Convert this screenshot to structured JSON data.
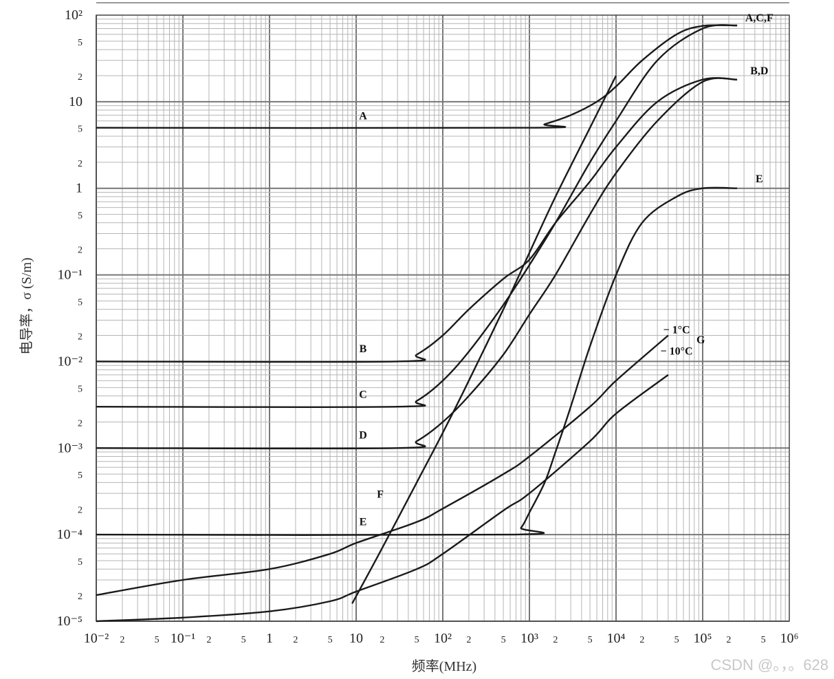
{
  "watermark": "CSDN @。，。628",
  "chart_data": {
    "type": "line",
    "xlabel": "频率(MHz)",
    "ylabel": "电导率，σ (S/m)",
    "xscale": "log",
    "yscale": "log",
    "xlim": [
      0.01,
      1000000
    ],
    "ylim": [
      1e-05,
      100
    ],
    "grid": true,
    "x_tick_labels": [
      "10⁻²",
      "2",
      "5",
      "10⁻¹",
      "2",
      "5",
      "1",
      "2",
      "5",
      "10",
      "2",
      "5",
      "10²",
      "2",
      "5",
      "10³",
      "2",
      "5",
      "10⁴",
      "2",
      "5",
      "10⁵",
      "2",
      "5",
      "10⁶"
    ],
    "y_tick_labels": [
      "10⁻⁵",
      "2",
      "5",
      "10⁻⁴",
      "2",
      "5",
      "10⁻³",
      "2",
      "5",
      "10⁻²",
      "2",
      "5",
      "10⁻¹",
      "2",
      "5",
      "1",
      "2",
      "5",
      "10",
      "2",
      "5",
      "10²"
    ],
    "series": [
      {
        "name": "A",
        "color": "#1a1a1a",
        "x": [
          0.01,
          1000,
          1500,
          3000,
          6000,
          10000,
          20000,
          50000,
          100000,
          250000
        ],
        "y": [
          5,
          5,
          5.5,
          7,
          10,
          15,
          30,
          60,
          75,
          76
        ]
      },
      {
        "name": "B",
        "color": "#1a1a1a",
        "x": [
          0.01,
          30,
          50,
          100,
          200,
          500,
          1000,
          2000,
          5000,
          10000,
          30000,
          100000,
          250000
        ],
        "y": [
          0.01,
          0.01,
          0.012,
          0.02,
          0.04,
          0.09,
          0.15,
          0.4,
          1.2,
          3,
          10,
          18,
          18
        ]
      },
      {
        "name": "C",
        "color": "#1a1a1a",
        "x": [
          0.01,
          30,
          50,
          100,
          200,
          500,
          1000,
          2000,
          5000,
          10000,
          30000,
          100000,
          250000
        ],
        "y": [
          0.003,
          0.003,
          0.0035,
          0.006,
          0.013,
          0.045,
          0.13,
          0.4,
          2,
          6,
          30,
          70,
          76
        ]
      },
      {
        "name": "D",
        "color": "#1a1a1a",
        "x": [
          0.01,
          30,
          50,
          100,
          200,
          500,
          1000,
          2000,
          5000,
          10000,
          30000,
          100000,
          250000
        ],
        "y": [
          0.001,
          0.001,
          0.0012,
          0.002,
          0.004,
          0.012,
          0.035,
          0.1,
          0.5,
          1.5,
          6,
          17,
          18
        ]
      },
      {
        "name": "E",
        "color": "#1a1a1a",
        "x": [
          0.01,
          600,
          800,
          1000,
          1500,
          2000,
          3000,
          5000,
          10000,
          20000,
          50000,
          100000,
          250000
        ],
        "y": [
          0.0001,
          0.0001,
          0.00012,
          0.00018,
          0.0004,
          0.0009,
          0.003,
          0.015,
          0.1,
          0.4,
          0.8,
          1,
          1
        ]
      },
      {
        "name": "F",
        "color": "#1a1a1a",
        "x": [
          9,
          20,
          50,
          100,
          200,
          500,
          1000,
          2000,
          5000,
          10000
        ],
        "y": [
          1.6e-05,
          7e-05,
          0.0004,
          0.0015,
          0.006,
          0.04,
          0.18,
          0.8,
          5,
          20
        ]
      },
      {
        "name": "G (−1°C)",
        "color": "#1a1a1a",
        "x": [
          0.01,
          0.1,
          1,
          5,
          10,
          50,
          100,
          500,
          1000,
          5000,
          10000,
          40000
        ],
        "y": [
          2e-05,
          3e-05,
          4e-05,
          6e-05,
          8e-05,
          0.00014,
          0.0002,
          0.0005,
          0.0008,
          0.003,
          0.006,
          0.02
        ]
      },
      {
        "name": "G (−10°C)",
        "color": "#1a1a1a",
        "x": [
          0.01,
          0.1,
          1,
          5,
          10,
          50,
          100,
          500,
          1000,
          5000,
          10000,
          40000
        ],
        "y": [
          1e-05,
          1.1e-05,
          1.3e-05,
          1.7e-05,
          2.2e-05,
          4e-05,
          6e-05,
          0.00019,
          0.0003,
          0.0012,
          0.0025,
          0.007
        ]
      }
    ],
    "annotations": [
      {
        "text": "A",
        "x": 12,
        "y": 5.6
      },
      {
        "text": "B",
        "x": 12,
        "y": 0.0115
      },
      {
        "text": "C",
        "x": 12,
        "y": 0.0034
      },
      {
        "text": "D",
        "x": 12,
        "y": 0.00115
      },
      {
        "text": "E",
        "x": 12,
        "y": 0.000115
      },
      {
        "text": "F",
        "x": 19,
        "y": 0.00024
      },
      {
        "text": "A,C,F",
        "x": 450000,
        "y": 76
      },
      {
        "text": "B,D",
        "x": 450000,
        "y": 18.5
      },
      {
        "text": "E",
        "x": 450000,
        "y": 1.05
      },
      {
        "text": "− 1°C",
        "x": 50000,
        "y": 0.019
      },
      {
        "text": "− 10°C",
        "x": 50000,
        "y": 0.0107
      },
      {
        "text": "G",
        "x": 95000,
        "y": 0.0145
      }
    ]
  }
}
